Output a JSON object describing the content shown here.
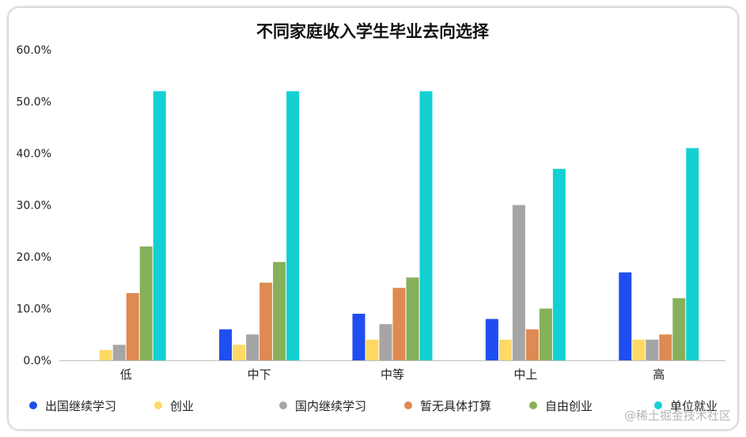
{
  "chart_data": {
    "type": "bar",
    "title": "不同家庭收入学生毕业去向选择",
    "categories": [
      "低",
      "中下",
      "中等",
      "中上",
      "高"
    ],
    "series": [
      {
        "name": "出国继续学习",
        "color": "#1f4ef0",
        "values": [
          0,
          6,
          9,
          8,
          17
        ]
      },
      {
        "name": "创业",
        "color": "#ffd966",
        "values": [
          2,
          3,
          4,
          4,
          4
        ]
      },
      {
        "name": "国内继续学习",
        "color": "#a5a5a5",
        "values": [
          3,
          5,
          7,
          30,
          4
        ]
      },
      {
        "name": "暂无具体打算",
        "color": "#de8a52",
        "values": [
          13,
          15,
          14,
          6,
          5
        ]
      },
      {
        "name": "自由创业",
        "color": "#86b05a",
        "values": [
          22,
          19,
          16,
          10,
          12
        ]
      },
      {
        "name": "单位就业",
        "color": "#14d0d2",
        "values": [
          52,
          52,
          52,
          37,
          41
        ]
      }
    ],
    "ylim": [
      0,
      60
    ],
    "yticks": [
      "0.0%",
      "10.0%",
      "20.0%",
      "30.0%",
      "40.0%",
      "50.0%",
      "60.0%"
    ],
    "grid": false,
    "legend": "bottom"
  },
  "watermark": "@稀土掘金技术社区"
}
